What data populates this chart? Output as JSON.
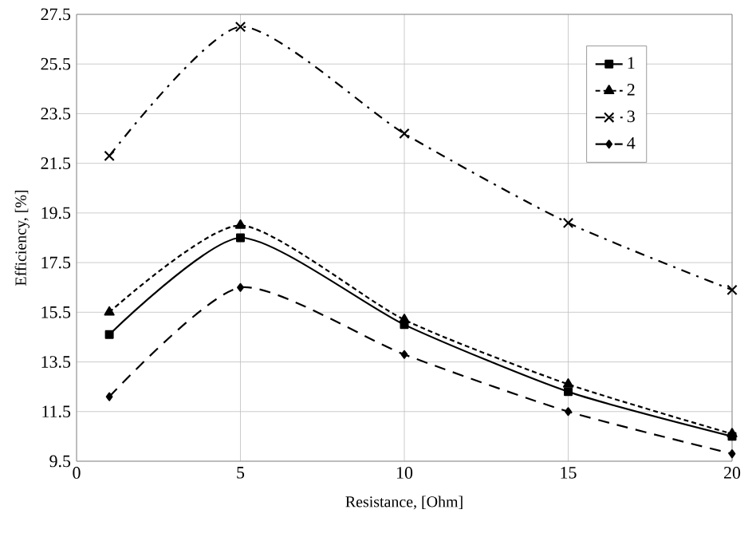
{
  "chart_data": {
    "type": "line",
    "xlabel": "Resistance, [Ohm]",
    "ylabel": "Efficiency, [%]",
    "xlim": [
      0,
      20
    ],
    "xticks": [
      0,
      5,
      10,
      15,
      20
    ],
    "ylim": [
      9.5,
      27.5
    ],
    "yticks": [
      9.5,
      11.5,
      13.5,
      15.5,
      17.5,
      19.5,
      21.5,
      23.5,
      25.5,
      27.5
    ],
    "grid": true,
    "legend": "top right",
    "x": [
      1,
      5,
      10,
      15,
      20
    ],
    "series": [
      {
        "name": "1",
        "color": "#000000",
        "marker": "square",
        "line_style": "solid",
        "values": [
          14.6,
          18.5,
          15.0,
          12.3,
          10.5
        ]
      },
      {
        "name": "2",
        "color": "#000000",
        "marker": "triangle",
        "line_style": "dashed",
        "values": [
          15.5,
          19.0,
          15.2,
          12.6,
          10.6
        ]
      },
      {
        "name": "3",
        "color": "#000000",
        "marker": "cross",
        "line_style": "dashdot",
        "values": [
          21.8,
          27.0,
          22.7,
          19.1,
          16.4
        ]
      },
      {
        "name": "4",
        "color": "#000000",
        "marker": "diamond",
        "line_style": "longdashed",
        "values": [
          12.1,
          16.5,
          13.8,
          11.5,
          9.8
        ]
      }
    ]
  }
}
